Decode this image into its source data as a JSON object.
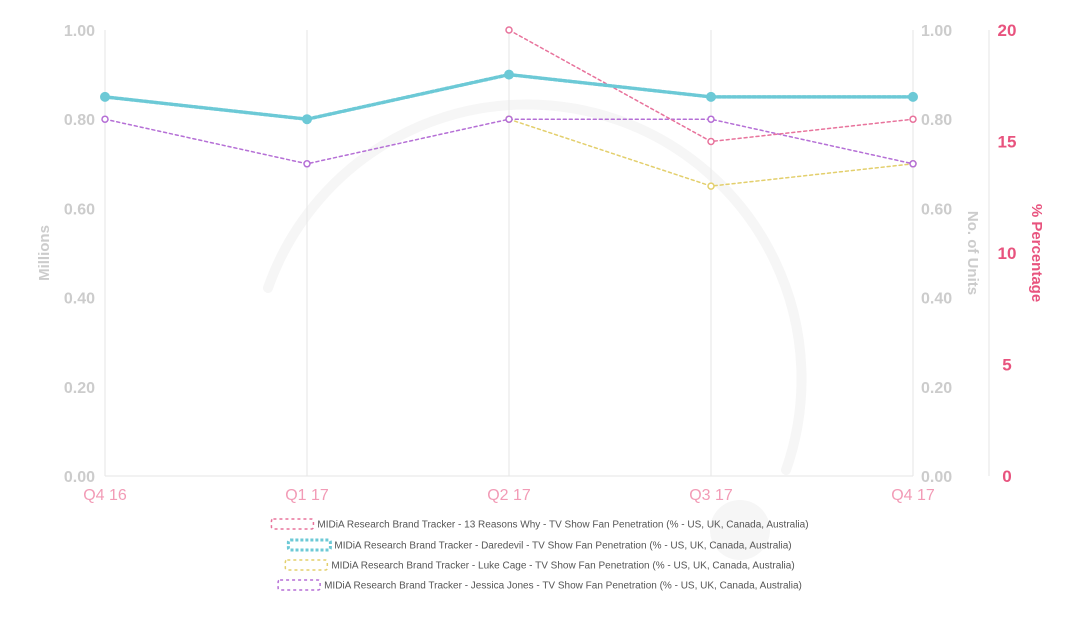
{
  "chart_data": {
    "type": "line",
    "categories": [
      "Q4 16",
      "Q1 17",
      "Q2 17",
      "Q3 17",
      "Q4 17"
    ],
    "axes": {
      "left": {
        "label": "Millions",
        "ticks": [
          "0.00",
          "0.20",
          "0.40",
          "0.60",
          "0.80",
          "1.00"
        ],
        "range": [
          0,
          1
        ]
      },
      "right": {
        "label": "No. of Units",
        "ticks": [
          "0.00",
          "0.20",
          "0.40",
          "0.60",
          "0.80",
          "1.00"
        ],
        "range": [
          0,
          1
        ]
      },
      "percentage": {
        "label": "% Percentage",
        "ticks": [
          "0",
          "5",
          "10",
          "15",
          "20"
        ],
        "range": [
          0,
          20
        ]
      }
    },
    "series": [
      {
        "name": "MIDiA Research Brand Tracker - 13 Reasons Why - TV Show Fan Penetration (% - US, UK, Canada, Australia)",
        "color": "#e8739c",
        "axis": "percentage",
        "values": [
          null,
          null,
          20,
          15,
          16
        ]
      },
      {
        "name": "MIDiA Research Brand Tracker - Daredevil - TV Show Fan Penetration (% - US, UK, Canada, Australia)",
        "color": "#6cc9d6",
        "axis": "percentage",
        "values": [
          17,
          16,
          18,
          17,
          17
        ]
      },
      {
        "name": "MIDiA Research Brand Tracker - Luke Cage - TV Show Fan Penetration (% - US, UK, Canada, Australia)",
        "color": "#e3cf6c",
        "axis": "percentage",
        "values": [
          null,
          null,
          16,
          13,
          14
        ]
      },
      {
        "name": "MIDiA Research Brand Tracker - Jessica Jones - TV Show Fan Penetration (% - US, UK, Canada, Australia)",
        "color": "#b56fd6",
        "axis": "percentage",
        "values": [
          16,
          14,
          16,
          16,
          14
        ]
      }
    ],
    "grid": "vertical",
    "legend_position": "bottom"
  }
}
